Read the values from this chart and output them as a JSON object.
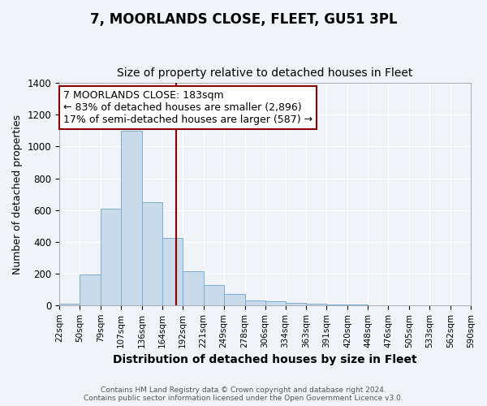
{
  "title": "7, MOORLANDS CLOSE, FLEET, GU51 3PL",
  "subtitle": "Size of property relative to detached houses in Fleet",
  "xlabel": "Distribution of detached houses by size in Fleet",
  "ylabel": "Number of detached properties",
  "bin_labels": [
    "22sqm",
    "50sqm",
    "79sqm",
    "107sqm",
    "136sqm",
    "164sqm",
    "192sqm",
    "221sqm",
    "249sqm",
    "278sqm",
    "306sqm",
    "334sqm",
    "363sqm",
    "391sqm",
    "420sqm",
    "448sqm",
    "476sqm",
    "505sqm",
    "533sqm",
    "562sqm",
    "590sqm"
  ],
  "bin_edges": [
    22,
    50,
    79,
    107,
    136,
    164,
    192,
    221,
    249,
    278,
    306,
    334,
    363,
    391,
    420,
    448,
    476,
    505,
    533,
    562,
    590
  ],
  "bar_heights": [
    10,
    195,
    610,
    1100,
    650,
    425,
    215,
    125,
    70,
    30,
    25,
    15,
    10,
    5,
    5,
    1,
    1,
    1,
    1,
    0
  ],
  "bar_color": "#c9daea",
  "bar_edge_color": "#7aafd4",
  "property_size": 183,
  "vline_color": "#8b0000",
  "annotation_text": "7 MOORLANDS CLOSE: 183sqm\n← 83% of detached houses are smaller (2,896)\n17% of semi-detached houses are larger (587) →",
  "annotation_box_color": "#ffffff",
  "annotation_box_edge_color": "#8b0000",
  "annotation_fontsize": 9,
  "ylim": [
    0,
    1400
  ],
  "footer_text": "Contains HM Land Registry data © Crown copyright and database right 2024.\nContains public sector information licensed under the Open Government Licence v3.0.",
  "background_color": "#f0f4f8",
  "grid_color": "#ffffff",
  "title_fontsize": 12,
  "subtitle_fontsize": 10,
  "xlabel_fontsize": 10,
  "ylabel_fontsize": 9,
  "tick_fontsize": 7.5
}
